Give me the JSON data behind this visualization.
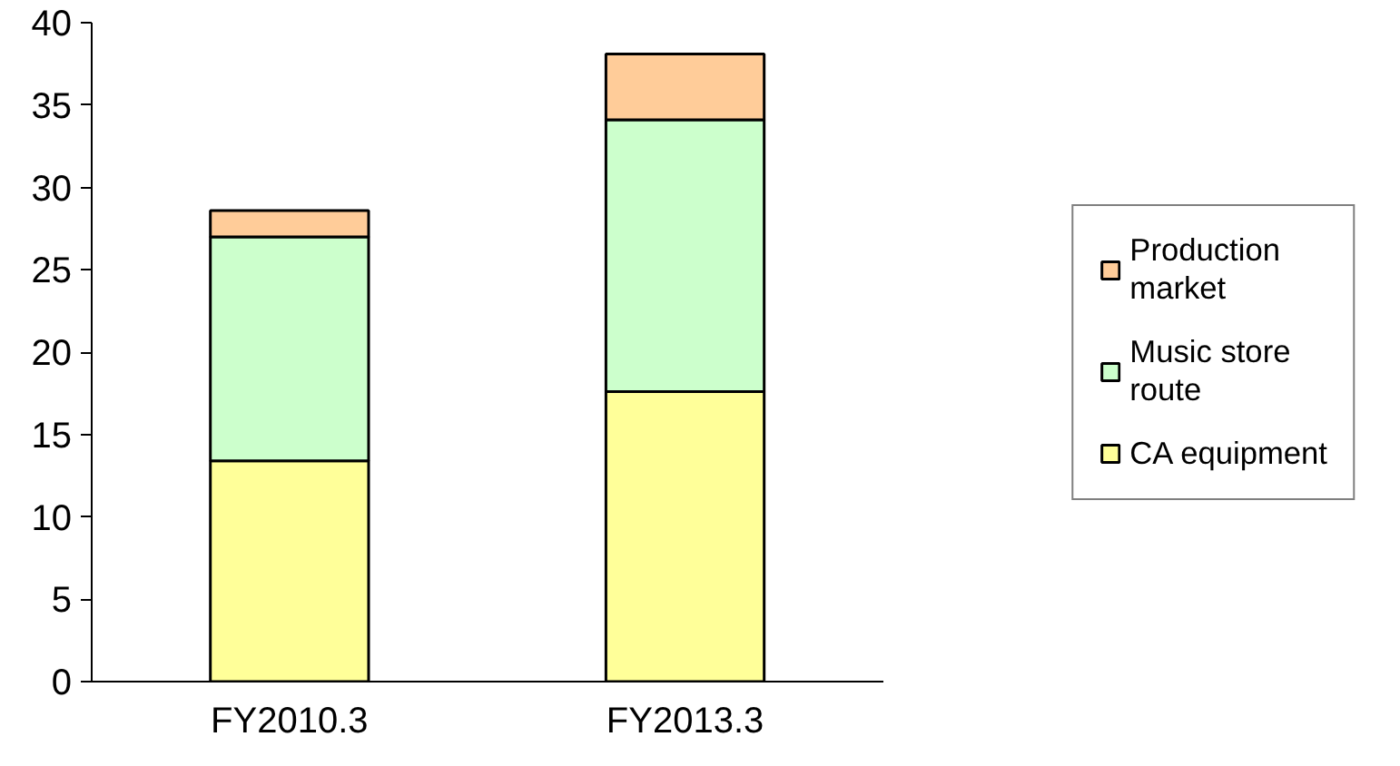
{
  "chart_data": {
    "type": "bar",
    "stacked": true,
    "categories": [
      "FY2010.3",
      "FY2013.3"
    ],
    "series": [
      {
        "name": "CA equipment",
        "color": "#ffff99",
        "values": [
          13.4,
          17.6
        ]
      },
      {
        "name": "Music store route",
        "color": "#ccffcc",
        "values": [
          13.6,
          16.5
        ]
      },
      {
        "name": "Production market",
        "color": "#ffcc99",
        "values": [
          1.6,
          4.0
        ]
      }
    ],
    "ylim": [
      0,
      40
    ],
    "yticks": [
      0,
      5,
      10,
      15,
      20,
      25,
      30,
      35,
      40
    ],
    "grid": false,
    "legend": "right"
  }
}
